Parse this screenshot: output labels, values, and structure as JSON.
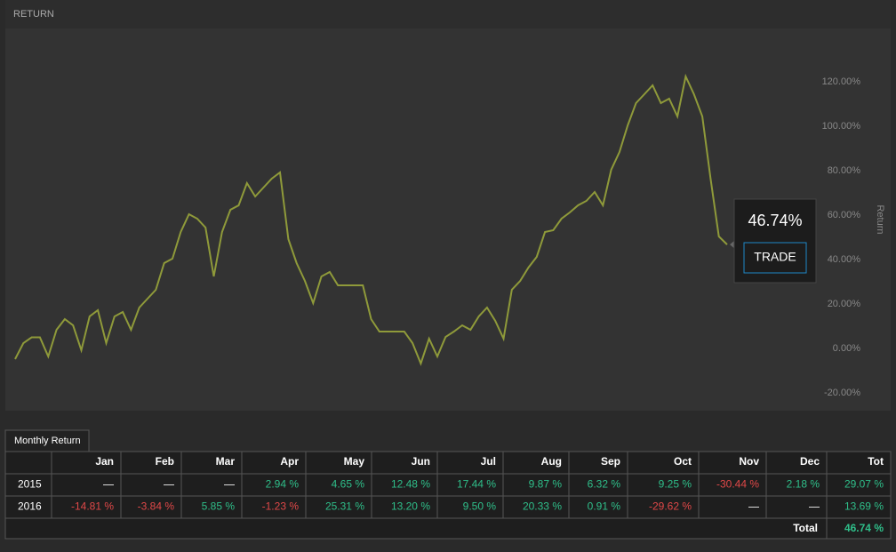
{
  "header": {
    "title": "RETURN"
  },
  "chart_data": {
    "type": "line",
    "y_label": "Return",
    "color": "#8f9a3a",
    "values": [
      -4.8,
      2.4,
      5,
      5,
      -3.6,
      8.4,
      13.2,
      10.4,
      -0.8,
      14.4,
      17.2,
      2.4,
      14.4,
      16.4,
      8.4,
      18.4,
      22.4,
      26.4,
      38.4,
      40.4,
      52.4,
      60.4,
      58.4,
      54.4,
      32.4,
      52.4,
      62.4,
      64.4,
      74.4,
      68.4,
      72.4,
      76.4,
      79.2,
      49.2,
      38.4,
      30.4,
      20.4,
      32.4,
      34.4,
      28.4,
      28.4,
      28.4,
      28.4,
      13.2,
      7.6,
      7.6,
      7.6,
      7.6,
      2.4,
      -6.8,
      4.4,
      -3.6,
      5.2,
      7.6,
      10.4,
      8.4,
      14.4,
      18.4,
      12.4,
      4.4,
      26.4,
      30.4,
      36.4,
      41.2,
      52.4,
      53.2,
      58.4,
      61.2,
      64.4,
      66.4,
      70.4,
      64.4,
      80.4,
      88.4,
      100.4,
      110.4,
      114.4,
      118.4,
      110.4,
      112.4,
      104.4,
      122.4,
      114.4,
      104.4,
      76.4,
      50.4,
      46.74
    ],
    "ylim": [
      -28,
      144
    ],
    "yticks": [
      {
        "value": -20,
        "label": "-20.00%"
      },
      {
        "value": 0,
        "label": "0.00%"
      },
      {
        "value": 20,
        "label": "20.00%"
      },
      {
        "value": 40,
        "label": "40.00%"
      },
      {
        "value": 60,
        "label": "60.00%"
      },
      {
        "value": 80,
        "label": "80.00%"
      },
      {
        "value": 100,
        "label": "100.00%"
      },
      {
        "value": 120,
        "label": "120.00%"
      }
    ],
    "tooltip_label": "46.74%",
    "button": "TRADE"
  },
  "table": {
    "tab": "Monthly Return",
    "header": [
      "Jan",
      "Feb",
      "Mar",
      "Apr",
      "May",
      "Jun",
      "Jul",
      "Aug",
      "Sep",
      "Oct",
      "Nov",
      "Dec",
      "Tot"
    ],
    "rows": [
      [
        "2015",
        "—",
        "—",
        "—",
        "2.94 %",
        "4.65 %",
        "12.48 %",
        "17.44 %",
        "9.87 %",
        "6.32 %",
        "9.25 %",
        "-30.44 %",
        "2.18 %",
        "29.07 %"
      ],
      [
        "2016",
        "-14.81 %",
        "-3.84 %",
        "5.85 %",
        "-1.23 %",
        "25.31 %",
        "13.20 %",
        "9.50 %",
        "20.33 %",
        "0.91 %",
        "-29.62 %",
        "—",
        "—",
        "13.69 %"
      ]
    ],
    "total": [
      "Total",
      "46.74 %"
    ]
  }
}
